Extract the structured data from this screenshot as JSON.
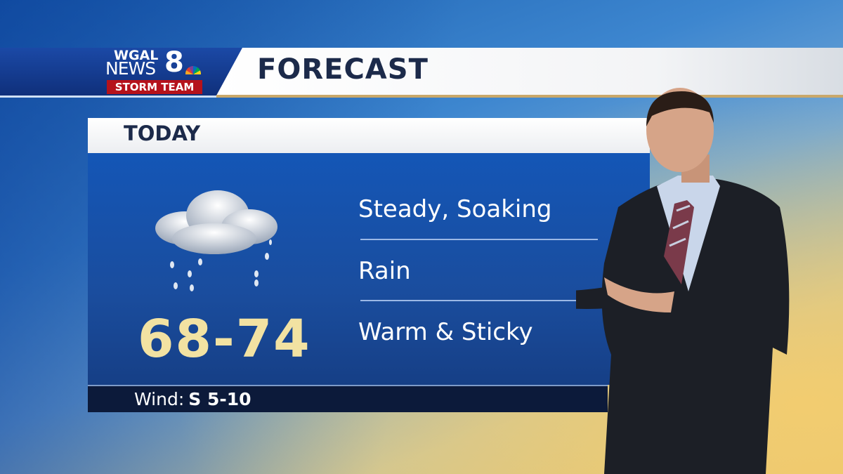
{
  "header": {
    "logo": {
      "station": "WGAL",
      "news": "NEWS",
      "channel": "8",
      "team": "STORM TEAM"
    },
    "title": "FORECAST"
  },
  "panel": {
    "heading": "TODAY",
    "icon": "cloud-rain-icon",
    "temperature_range": "68-74",
    "conditions": [
      "Steady, Soaking",
      "Rain",
      "Warm & Sticky"
    ],
    "wind": {
      "label": "Wind:",
      "value": "S 5-10"
    }
  },
  "colors": {
    "brand_blue": "#1b49a6",
    "storm_red": "#b5121b",
    "temp": "#f2e2a2",
    "title": "#1c2a4a"
  }
}
